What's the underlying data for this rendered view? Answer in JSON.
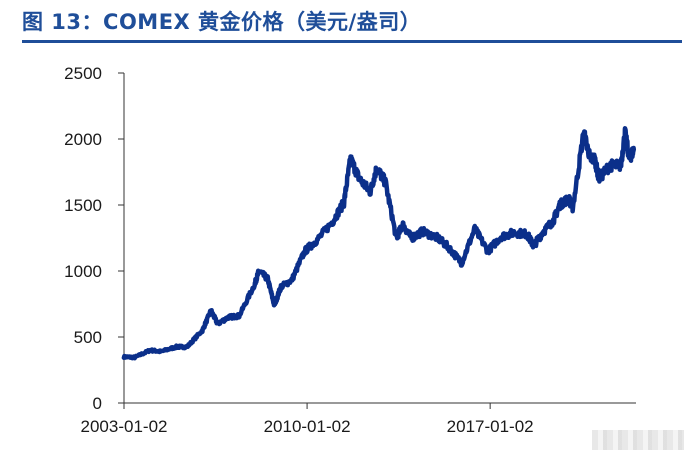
{
  "figure": {
    "title": "图 13：COMEX 黄金价格（美元/盎司）"
  },
  "chart_data": {
    "type": "line",
    "title": "",
    "xlabel": "",
    "ylabel": "",
    "ylim": [
      0,
      2500
    ],
    "y_ticks": [
      0,
      500,
      1000,
      1500,
      2000,
      2500
    ],
    "x_tick_labels": [
      "2003-01-02",
      "2010-01-02",
      "2017-01-02"
    ],
    "xlim": [
      "2003-01-02",
      "2022-08-01"
    ],
    "grid": false,
    "legend": "none",
    "line_color": "#0b2f8a",
    "series": [
      {
        "name": "",
        "x": [
          "2003-01",
          "2003-06",
          "2004-01",
          "2004-06",
          "2005-01",
          "2005-06",
          "2006-01",
          "2006-05",
          "2006-08",
          "2007-01",
          "2007-06",
          "2008-01",
          "2008-03",
          "2008-07",
          "2008-10",
          "2009-01",
          "2009-06",
          "2009-12",
          "2010-06",
          "2011-01",
          "2011-06",
          "2011-09",
          "2012-01",
          "2012-06",
          "2012-09",
          "2013-01",
          "2013-06",
          "2013-09",
          "2014-01",
          "2014-06",
          "2015-01",
          "2015-06",
          "2015-12",
          "2016-06",
          "2016-12",
          "2017-06",
          "2017-12",
          "2018-06",
          "2018-09",
          "2019-01",
          "2019-06",
          "2019-09",
          "2020-01",
          "2020-03",
          "2020-08",
          "2020-11",
          "2021-01",
          "2021-03",
          "2021-08",
          "2022-01",
          "2022-03",
          "2022-05",
          "2022-07"
        ],
        "values": [
          350,
          345,
          400,
          390,
          425,
          425,
          550,
          700,
          600,
          650,
          660,
          900,
          1000,
          940,
          740,
          880,
          930,
          1150,
          1240,
          1380,
          1520,
          1850,
          1700,
          1600,
          1780,
          1670,
          1250,
          1350,
          1250,
          1300,
          1250,
          1180,
          1060,
          1320,
          1150,
          1260,
          1290,
          1280,
          1190,
          1290,
          1380,
          1500,
          1550,
          1480,
          2050,
          1850,
          1850,
          1700,
          1800,
          1800,
          2050,
          1850,
          1920
        ]
      }
    ]
  }
}
